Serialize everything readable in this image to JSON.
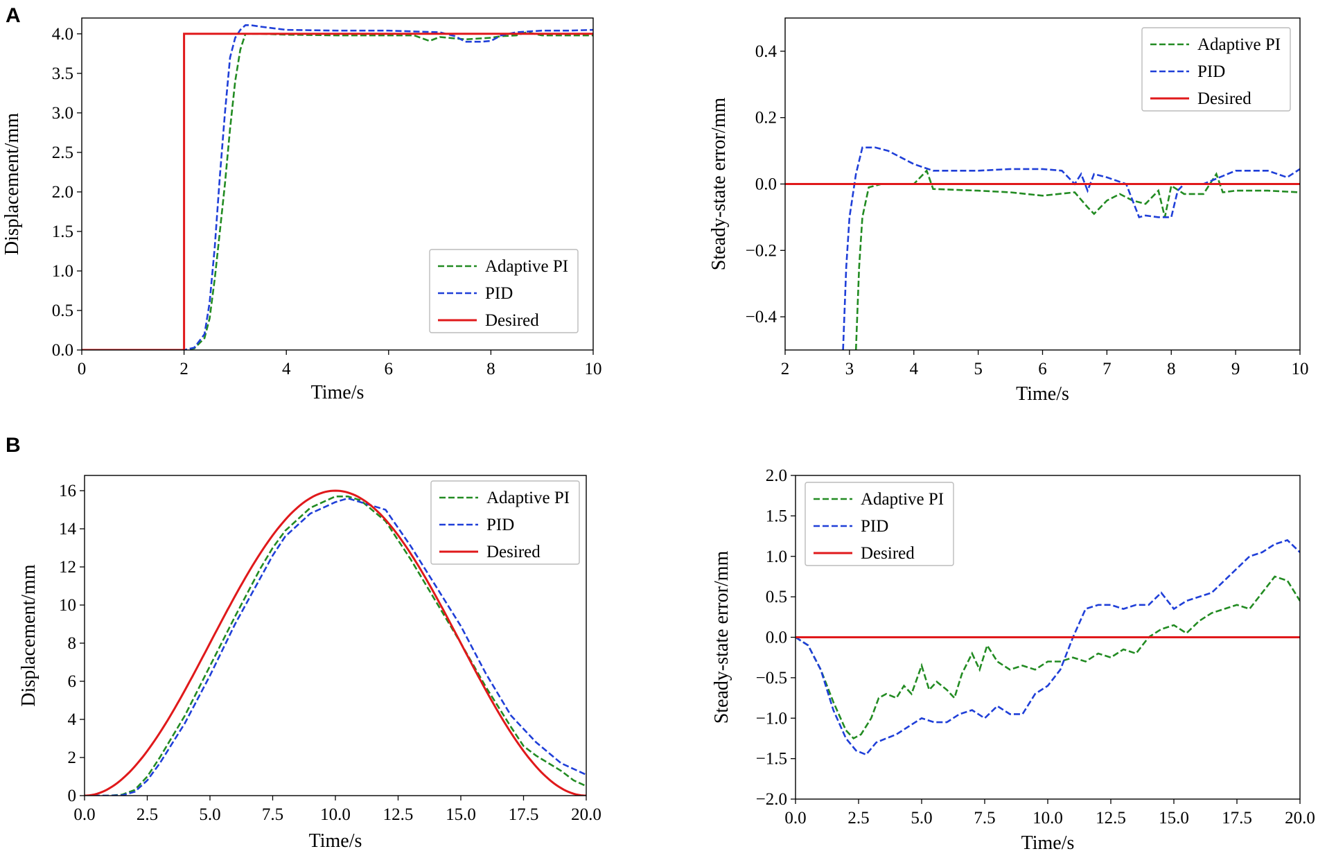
{
  "figure": {
    "panel_labels": [
      "A",
      "B"
    ]
  },
  "colors": {
    "adaptive_pi": "#228b22",
    "pid": "#1f3fd8",
    "desired": "#e0191b",
    "axis": "#000000",
    "legend_border": "#bbbbbb"
  },
  "chart_data": [
    {
      "id": "A_left",
      "type": "line",
      "title": "",
      "xlabel": "Time/s",
      "ylabel": "Displacement/mm",
      "xlim": [
        0,
        10
      ],
      "ylim": [
        0,
        4.2
      ],
      "xticks": [
        0,
        2,
        4,
        6,
        8,
        10
      ],
      "xtick_labels": [
        "0",
        "2",
        "4",
        "6",
        "8",
        "10"
      ],
      "yticks": [
        0,
        0.5,
        1,
        1.5,
        2,
        2.5,
        3,
        3.5,
        4
      ],
      "ytick_labels": [
        "0.0",
        "0.5",
        "1.0",
        "1.5",
        "2.0",
        "2.5",
        "3.0",
        "3.5",
        "4.0"
      ],
      "legend_position": "lower-right",
      "series": [
        {
          "name": "Adaptive PI",
          "style": "dashed",
          "color_key": "adaptive_pi",
          "x": [
            0,
            2.0,
            2.2,
            2.4,
            2.5,
            2.6,
            2.7,
            2.8,
            2.9,
            3.0,
            3.1,
            3.2,
            3.3,
            3.5,
            4.0,
            5.0,
            6.0,
            6.5,
            6.8,
            7.0,
            7.5,
            8.0,
            8.2,
            8.5,
            8.7,
            9.0,
            9.5,
            10.0
          ],
          "y": [
            0,
            0,
            0.02,
            0.15,
            0.4,
            0.9,
            1.5,
            2.1,
            2.8,
            3.4,
            3.8,
            4.0,
            4.0,
            4.0,
            3.99,
            3.98,
            3.98,
            3.98,
            3.91,
            3.96,
            3.93,
            3.95,
            3.97,
            3.98,
            4.02,
            3.98,
            3.98,
            3.98
          ]
        },
        {
          "name": "PID",
          "style": "dashed",
          "color_key": "pid",
          "x": [
            0,
            2.0,
            2.2,
            2.4,
            2.5,
            2.6,
            2.7,
            2.8,
            2.9,
            3.0,
            3.1,
            3.2,
            3.3,
            3.5,
            4.0,
            5.0,
            6.0,
            6.5,
            7.0,
            7.3,
            7.5,
            7.8,
            8.0,
            8.2,
            8.5,
            9.0,
            9.5,
            10.0
          ],
          "y": [
            0,
            0,
            0.03,
            0.2,
            0.6,
            1.3,
            2.2,
            3.0,
            3.7,
            3.95,
            4.05,
            4.11,
            4.11,
            4.09,
            4.05,
            4.04,
            4.04,
            4.03,
            4.02,
            3.97,
            3.9,
            3.9,
            3.91,
            3.98,
            4.02,
            4.04,
            4.04,
            4.05
          ]
        },
        {
          "name": "Desired",
          "style": "solid",
          "color_key": "desired",
          "x": [
            0,
            2.0,
            2.0,
            10.0
          ],
          "y": [
            0,
            0,
            4.0,
            4.0
          ]
        }
      ]
    },
    {
      "id": "A_right",
      "type": "line",
      "title": "",
      "xlabel": "Time/s",
      "ylabel": "Steady-state error/mm",
      "xlim": [
        2,
        10
      ],
      "ylim": [
        -0.5,
        0.5
      ],
      "xticks": [
        2,
        3,
        4,
        5,
        6,
        7,
        8,
        9,
        10
      ],
      "xtick_labels": [
        "2",
        "3",
        "4",
        "5",
        "6",
        "7",
        "8",
        "9",
        "10"
      ],
      "yticks": [
        -0.4,
        -0.2,
        0,
        0.2,
        0.4
      ],
      "ytick_labels": [
        "−0.4",
        "−0.2",
        "0.0",
        "0.2",
        "0.4"
      ],
      "legend_position": "top-right",
      "series": [
        {
          "name": "Adaptive PI",
          "style": "dashed",
          "color_key": "adaptive_pi",
          "x": [
            3.1,
            3.15,
            3.2,
            3.3,
            3.5,
            4.0,
            4.2,
            4.3,
            5.0,
            5.5,
            6.0,
            6.5,
            6.7,
            6.8,
            7.0,
            7.2,
            7.4,
            7.6,
            7.8,
            7.9,
            8.0,
            8.2,
            8.5,
            8.7,
            8.8,
            9.0,
            9.5,
            10.0
          ],
          "y": [
            -0.5,
            -0.25,
            -0.1,
            -0.01,
            0.0,
            0.0,
            0.04,
            -0.015,
            -0.02,
            -0.025,
            -0.035,
            -0.025,
            -0.07,
            -0.09,
            -0.05,
            -0.03,
            -0.05,
            -0.06,
            -0.02,
            -0.1,
            -0.005,
            -0.03,
            -0.03,
            0.03,
            -0.025,
            -0.02,
            -0.02,
            -0.025
          ]
        },
        {
          "name": "PID",
          "style": "dashed",
          "color_key": "pid",
          "x": [
            2.9,
            2.95,
            3.0,
            3.1,
            3.2,
            3.4,
            3.6,
            4.0,
            4.3,
            5.0,
            5.5,
            6.0,
            6.3,
            6.5,
            6.6,
            6.7,
            6.8,
            7.0,
            7.3,
            7.5,
            7.6,
            7.8,
            8.0,
            8.1,
            8.2,
            8.5,
            9.0,
            9.5,
            9.8,
            10.0
          ],
          "y": [
            -0.5,
            -0.25,
            -0.1,
            0.03,
            0.11,
            0.11,
            0.1,
            0.06,
            0.04,
            0.04,
            0.045,
            0.045,
            0.04,
            0.0,
            0.03,
            -0.02,
            0.03,
            0.02,
            0.0,
            -0.1,
            -0.095,
            -0.1,
            -0.1,
            -0.02,
            0.0,
            0.0,
            0.04,
            0.04,
            0.02,
            0.045
          ]
        },
        {
          "name": "Desired",
          "style": "solid",
          "color_key": "desired",
          "x": [
            2,
            10
          ],
          "y": [
            0,
            0
          ]
        }
      ]
    },
    {
      "id": "B_left",
      "type": "line",
      "title": "",
      "xlabel": "Time/s",
      "ylabel": "Displacement/mm",
      "xlim": [
        0,
        20
      ],
      "ylim": [
        0,
        16.8
      ],
      "xticks": [
        0,
        2.5,
        5,
        7.5,
        10,
        12.5,
        15,
        17.5,
        20
      ],
      "xtick_labels": [
        "0.0",
        "2.5",
        "5.0",
        "7.5",
        "10.0",
        "12.5",
        "15.0",
        "17.5",
        "20.0"
      ],
      "yticks": [
        0,
        2,
        4,
        6,
        8,
        10,
        12,
        14,
        16
      ],
      "ytick_labels": [
        "0",
        "2",
        "4",
        "6",
        "8",
        "10",
        "12",
        "14",
        "16"
      ],
      "legend_position": "top-right",
      "series": [
        {
          "name": "Adaptive PI",
          "style": "dashed",
          "color_key": "adaptive_pi",
          "x": [
            0,
            1.0,
            1.5,
            2.0,
            2.5,
            3.0,
            4.0,
            5.0,
            6.0,
            7.0,
            7.5,
            8.0,
            9.0,
            10.0,
            10.5,
            11.0,
            12.0,
            13.0,
            14.0,
            15.0,
            16.0,
            17.0,
            17.5,
            18.0,
            19.0,
            19.5,
            20.0
          ],
          "y": [
            0,
            0,
            0.05,
            0.3,
            1.0,
            2.0,
            4.2,
            6.8,
            9.4,
            11.9,
            13.0,
            13.9,
            15.1,
            15.7,
            15.7,
            15.5,
            14.4,
            12.4,
            10.2,
            8.0,
            5.7,
            3.6,
            2.6,
            2.1,
            1.3,
            0.8,
            0.5
          ]
        },
        {
          "name": "PID",
          "style": "dashed",
          "color_key": "pid",
          "x": [
            0,
            1.0,
            1.5,
            2.0,
            2.5,
            3.0,
            4.0,
            5.0,
            6.0,
            7.0,
            7.5,
            8.0,
            9.0,
            10.0,
            10.5,
            11.0,
            12.0,
            13.0,
            14.0,
            15.0,
            16.0,
            17.0,
            18.0,
            19.0,
            20.0
          ],
          "y": [
            0,
            0,
            0.02,
            0.2,
            0.8,
            1.7,
            3.8,
            6.3,
            9.0,
            11.4,
            12.6,
            13.6,
            14.8,
            15.4,
            15.6,
            15.4,
            15.0,
            13.1,
            11.0,
            8.9,
            6.4,
            4.2,
            2.8,
            1.7,
            1.1
          ]
        },
        {
          "name": "Desired",
          "style": "solid",
          "color_key": "desired",
          "func": "8*(1-cos(pi*t/10))",
          "x_start": 0,
          "x_end": 20
        }
      ]
    },
    {
      "id": "B_right",
      "type": "line",
      "title": "",
      "xlabel": "Time/s",
      "ylabel": "Steady-state error/mm",
      "xlim": [
        0,
        20
      ],
      "ylim": [
        -2,
        2
      ],
      "xticks": [
        0,
        2.5,
        5,
        7.5,
        10,
        12.5,
        15,
        17.5,
        20
      ],
      "xtick_labels": [
        "0.0",
        "2.5",
        "5.0",
        "7.5",
        "10.0",
        "12.5",
        "15.0",
        "17.5",
        "20.0"
      ],
      "yticks": [
        -2,
        -1.5,
        -1,
        -0.5,
        0,
        0.5,
        1,
        1.5,
        2
      ],
      "ytick_labels": [
        "−2.0",
        "−1.5",
        "−1.0",
        "−0.5",
        "0.0",
        "0.5",
        "1.0",
        "1.5",
        "2.0"
      ],
      "legend_position": "top-left",
      "series": [
        {
          "name": "Adaptive PI",
          "style": "dashed",
          "color_key": "adaptive_pi",
          "x": [
            0,
            0.5,
            1.0,
            1.5,
            2.0,
            2.3,
            2.6,
            3.0,
            3.3,
            3.6,
            4.0,
            4.3,
            4.6,
            5.0,
            5.3,
            5.6,
            6.0,
            6.3,
            6.6,
            7.0,
            7.3,
            7.6,
            8.0,
            8.5,
            9.0,
            9.5,
            10.0,
            10.5,
            11.0,
            11.5,
            12.0,
            12.5,
            13.0,
            13.5,
            14.0,
            14.5,
            15.0,
            15.5,
            16.0,
            16.5,
            17.0,
            17.5,
            18.0,
            18.5,
            19.0,
            19.5,
            20.0
          ],
          "y": [
            0,
            -0.1,
            -0.4,
            -0.8,
            -1.15,
            -1.25,
            -1.2,
            -1.0,
            -0.75,
            -0.7,
            -0.75,
            -0.6,
            -0.7,
            -0.35,
            -0.65,
            -0.55,
            -0.65,
            -0.75,
            -0.45,
            -0.2,
            -0.4,
            -0.1,
            -0.3,
            -0.4,
            -0.35,
            -0.4,
            -0.3,
            -0.3,
            -0.25,
            -0.3,
            -0.2,
            -0.25,
            -0.15,
            -0.2,
            0.0,
            0.1,
            0.15,
            0.05,
            0.2,
            0.3,
            0.35,
            0.4,
            0.35,
            0.55,
            0.75,
            0.7,
            0.45
          ]
        },
        {
          "name": "PID",
          "style": "dashed",
          "color_key": "pid",
          "x": [
            0,
            0.5,
            1.0,
            1.5,
            2.0,
            2.4,
            2.8,
            3.2,
            3.6,
            4.0,
            4.5,
            5.0,
            5.5,
            6.0,
            6.5,
            7.0,
            7.5,
            8.0,
            8.5,
            9.0,
            9.5,
            10.0,
            10.5,
            11.0,
            11.5,
            12.0,
            12.5,
            13.0,
            13.5,
            14.0,
            14.5,
            15.0,
            15.5,
            16.0,
            16.5,
            17.0,
            17.5,
            18.0,
            18.5,
            19.0,
            19.5,
            20.0
          ],
          "y": [
            0,
            -0.1,
            -0.4,
            -0.9,
            -1.25,
            -1.4,
            -1.45,
            -1.3,
            -1.25,
            -1.2,
            -1.1,
            -1.0,
            -1.05,
            -1.05,
            -0.95,
            -0.9,
            -1.0,
            -0.85,
            -0.95,
            -0.95,
            -0.7,
            -0.6,
            -0.4,
            0.0,
            0.35,
            0.4,
            0.4,
            0.35,
            0.4,
            0.4,
            0.55,
            0.35,
            0.45,
            0.5,
            0.55,
            0.7,
            0.85,
            1.0,
            1.05,
            1.15,
            1.2,
            1.05
          ]
        },
        {
          "name": "Desired",
          "style": "solid",
          "color_key": "desired",
          "x": [
            0,
            20
          ],
          "y": [
            0,
            0
          ]
        }
      ]
    }
  ]
}
